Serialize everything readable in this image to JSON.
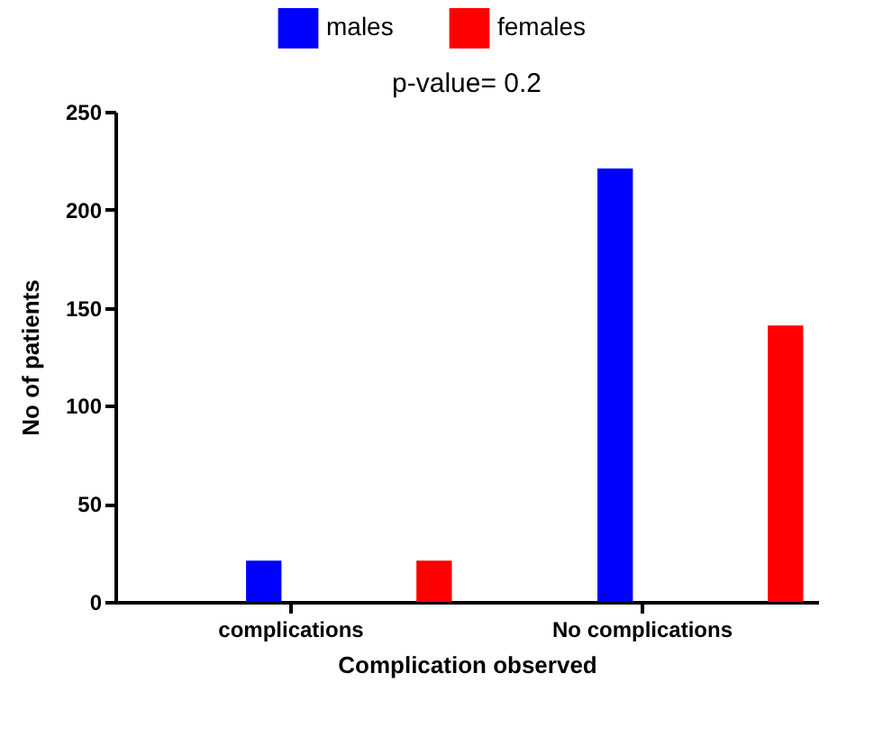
{
  "chart_data": {
    "type": "bar",
    "title": "p-value= 0.2",
    "xlabel": "Complication observed",
    "ylabel": "No of patients",
    "categories": [
      "complications",
      "No complications"
    ],
    "series": [
      {
        "name": "males",
        "color": "#0000ff",
        "values": [
          21,
          221
        ]
      },
      {
        "name": "females",
        "color": "#ff0000",
        "values": [
          21,
          141
        ]
      }
    ],
    "ylim": [
      0,
      250
    ],
    "yticks": [
      0,
      50,
      100,
      150,
      200,
      250
    ],
    "grid": false,
    "legend": "top"
  }
}
